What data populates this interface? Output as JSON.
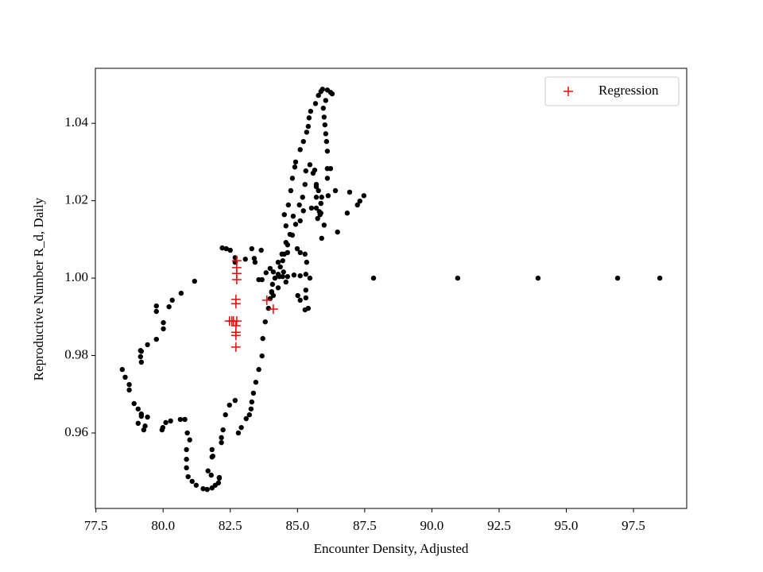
{
  "chart_data": {
    "type": "scatter",
    "xlabel": "Encounter Density, Adjusted",
    "ylabel": "Reproductive Number R_d, Daily",
    "xlim": [
      77.48,
      99.48
    ],
    "ylim": [
      0.9405,
      1.0542
    ],
    "xticks": [
      77.5,
      {
        "value": 80,
        "label": "80.0"
      },
      82.5,
      {
        "value": 85,
        "label": "85.0"
      },
      87.5,
      {
        "value": 90,
        "label": "90.0"
      },
      92.5,
      {
        "value": 95,
        "label": "95.0"
      },
      97.5
    ],
    "yticks": [
      0.96,
      0.98,
      {
        "value": 1,
        "label": "1.00"
      },
      1.02,
      1.04
    ],
    "legend": "upper right",
    "series": [
      {
        "color": "#000000",
        "marker": "o",
        "x": [
          81.17,
          80.67,
          80.34,
          80.22,
          80.01,
          80.01,
          79.75,
          79.75,
          79.75,
          79.42,
          79.19,
          79.19,
          79.16,
          79.16,
          78.74,
          78.59,
          78.48,
          78.74,
          78.92,
          79.07,
          79.19,
          79.19,
          79.07,
          79.28,
          79.33,
          79.42,
          79.99,
          79.96,
          80.1,
          80.28,
          80.64,
          80.81,
          80.9,
          80.99,
          80.87,
          80.87,
          80.87,
          80.93,
          81.08,
          81.23,
          81.49,
          81.64,
          81.82,
          81.94,
          82.09,
          82.06,
          81.79,
          81.67,
          81.82,
          81.82,
          81.85,
          82.17,
          82.17,
          82.09,
          82.23,
          82.32,
          82.47,
          82.68,
          82.8,
          82.91,
          83.09,
          83.21,
          83.27,
          83.3,
          83.36,
          83.45,
          83.56,
          83.68,
          83.71,
          83.8,
          83.92,
          83.98,
          84.04,
          84.07,
          84.28,
          84.36,
          84.45,
          84.51,
          84.63,
          84.81,
          84.57,
          84.51,
          84.66,
          84.75,
          84.81,
          84.9,
          84.93,
          85.1,
          85.22,
          85.34,
          85.4,
          85.43,
          85.49,
          85.67,
          85.78,
          85.87,
          85.93,
          86.11,
          86.23,
          86.29,
          86.05,
          85.96,
          85.99,
          86.02,
          86.05,
          86.08,
          86.11,
          86.11,
          86.11,
          86.14,
          85.78,
          85.7,
          85.7,
          85.7,
          85.75,
          85.9,
          85.99,
          85.81,
          85.87,
          85.58,
          85.64,
          85.7,
          85.46,
          85.31,
          85.28,
          85.19,
          85.22,
          85.1,
          84.93,
          84.72,
          84.57,
          84.42,
          84.28,
          83.98,
          83.83,
          83.68,
          83.56,
          83.65,
          83.42,
          83.39,
          83.3,
          83.06,
          82.68,
          82.68,
          82.5,
          82.35,
          82.2,
          84.1,
          84.16,
          84.33,
          84.45,
          84.63,
          84.87,
          85.1,
          85.31,
          85.46,
          85.31,
          85.31,
          85.4,
          85.28,
          85.1,
          85.01,
          84.57,
          84.28,
          84.04,
          84.1,
          84.48,
          84.63,
          84.99,
          85.1,
          85.28,
          85.34,
          84.84,
          85.07,
          85.52,
          85.84,
          85.87,
          86.41,
          86.94,
          86.85,
          86.49,
          87.23,
          87.32,
          87.47,
          86.23,
          85.9,
          85.87,
          87.83,
          90.96,
          93.95,
          96.91,
          98.48
        ],
        "values": [
          0.9992,
          0.9961,
          0.9943,
          0.9926,
          0.9885,
          0.9869,
          0.9914,
          0.9928,
          0.9842,
          0.9828,
          0.9811,
          0.9783,
          0.9797,
          0.9813,
          0.9725,
          0.9744,
          0.9764,
          0.9711,
          0.9676,
          0.9662,
          0.9643,
          0.9649,
          0.9625,
          0.9608,
          0.9618,
          0.9641,
          0.9614,
          0.9608,
          0.9627,
          0.9631,
          0.9635,
          0.9635,
          0.96,
          0.9582,
          0.9557,
          0.9532,
          0.951,
          0.9487,
          0.9475,
          0.9465,
          0.9456,
          0.9454,
          0.9458,
          0.9465,
          0.9485,
          0.9471,
          0.9491,
          0.9502,
          0.9538,
          0.9557,
          0.954,
          0.9575,
          0.9588,
          0.9483,
          0.9608,
          0.9647,
          0.9672,
          0.9684,
          0.96,
          0.9614,
          0.9637,
          0.9647,
          0.9662,
          0.968,
          0.9703,
          0.9731,
          0.9764,
          0.9799,
          0.9844,
          0.9887,
          0.9922,
          0.9947,
          0.9965,
          0.9984,
          1.001,
          1.0029,
          1.0045,
          1.0062,
          1.0086,
          1.0111,
          1.0135,
          1.0164,
          1.0189,
          1.0226,
          1.0258,
          1.0287,
          1.03,
          1.0332,
          1.0353,
          1.0377,
          1.0392,
          1.0414,
          1.0431,
          1.0451,
          1.0472,
          1.0482,
          1.0488,
          1.0486,
          1.048,
          1.0476,
          1.0459,
          1.0439,
          1.0416,
          1.0396,
          1.0373,
          1.0353,
          1.0328,
          1.0283,
          1.0258,
          1.0213,
          1.0226,
          1.0242,
          1.0209,
          1.0181,
          1.0154,
          1.0103,
          1.0137,
          1.0172,
          1.0193,
          1.0271,
          1.0279,
          1.0236,
          1.0293,
          1.0277,
          1.0242,
          1.0209,
          1.0174,
          1.0148,
          1.0139,
          1.0113,
          1.0092,
          1.0062,
          1.0041,
          1.0025,
          1.0014,
          0.9996,
          0.9996,
          1.0072,
          1.0041,
          1.0051,
          1.0076,
          1.0049,
          1.0053,
          1.0041,
          1.0072,
          1.0076,
          1.0078,
          1.0016,
          1.0,
          1.0004,
          1.0004,
          1.0004,
          1.0008,
          1.0006,
          1.001,
          1.0,
          0.9969,
          0.9949,
          0.9922,
          0.9918,
          0.9943,
          0.9955,
          0.999,
          0.9975,
          0.9963,
          0.9955,
          1.0016,
          1.0066,
          1.0076,
          1.0066,
          1.0062,
          1.0041,
          1.016,
          1.0189,
          1.0181,
          1.0164,
          1.0168,
          1.0226,
          1.0222,
          1.0168,
          1.0119,
          1.0189,
          1.0199,
          1.0213,
          1.0283,
          1.0209,
          1.0193,
          1.0,
          1.0,
          1.0,
          1.0,
          1.0
        ]
      },
      {
        "name": "Regression",
        "color": "#ff0000",
        "marker": "+",
        "x": [
          82.74,
          82.74,
          82.74,
          82.74,
          82.71,
          82.71,
          82.47,
          82.56,
          82.62,
          82.74,
          82.71,
          82.71,
          82.71,
          82.71,
          83.86,
          84.1
        ],
        "values": [
          1.0045,
          1.0027,
          1.0012,
          0.9996,
          0.9945,
          0.9934,
          0.9889,
          0.9889,
          0.9889,
          0.9889,
          0.9877,
          0.986,
          0.9852,
          0.9822,
          0.9943,
          0.992
        ]
      }
    ]
  }
}
